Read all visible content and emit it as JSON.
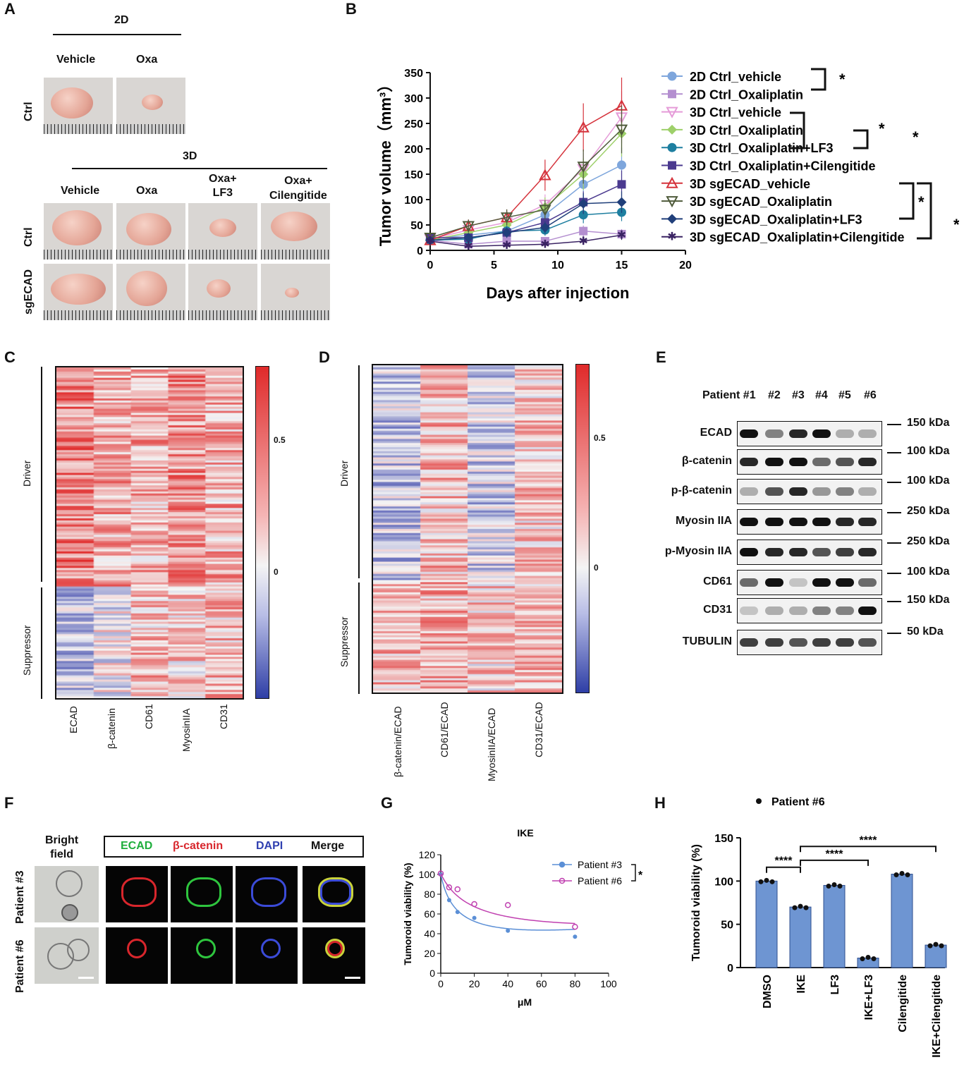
{
  "panels": {
    "A": "A",
    "B": "B",
    "C": "C",
    "D": "D",
    "E": "E",
    "F": "F",
    "G": "G",
    "H": "H"
  },
  "panelA": {
    "group_2d": "2D",
    "group_3d": "3D",
    "cols_2d": [
      "Vehicle",
      "Oxa"
    ],
    "cols_3d": [
      "Vehicle",
      "Oxa",
      "Oxa+\nLF3",
      "Oxa+\nCilengitide"
    ],
    "rows": [
      "Ctrl",
      "Ctrl",
      "sgECAD"
    ]
  },
  "chart_data": [
    {
      "id": "B",
      "type": "line",
      "xlabel": "Days after injection",
      "ylabel": "Tumor volume（mm³）",
      "xlim": [
        0,
        20
      ],
      "ylim": [
        0,
        350
      ],
      "xticks": [
        0,
        5,
        10,
        15,
        20
      ],
      "yticks": [
        0,
        50,
        100,
        150,
        200,
        250,
        300,
        350
      ],
      "x": [
        0,
        3,
        6,
        9,
        12,
        15
      ],
      "series": [
        {
          "name": "2D Ctrl_vehicle",
          "color": "#7ea6dc",
          "marker": "circle",
          "values": [
            22,
            30,
            38,
            70,
            130,
            168
          ]
        },
        {
          "name": "2D Ctrl_Oxaliplatin",
          "color": "#b48fd0",
          "marker": "square",
          "values": [
            20,
            12,
            18,
            18,
            38,
            32
          ]
        },
        {
          "name": "3D Ctrl_vehicle",
          "color": "#e59bd8",
          "marker": "tri-down",
          "values": [
            22,
            40,
            55,
            90,
            160,
            262
          ]
        },
        {
          "name": "3D Ctrl_Oxaliplatin",
          "color": "#9ed06a",
          "marker": "diamond",
          "values": [
            20,
            35,
            50,
            85,
            150,
            230
          ]
        },
        {
          "name": "3D Ctrl_Oxaliplatin+LF3",
          "color": "#1e7fa0",
          "marker": "circle",
          "values": [
            20,
            22,
            38,
            40,
            70,
            75
          ]
        },
        {
          "name": "3D Ctrl_Oxaliplatin+Cilengitide",
          "color": "#4b3a8f",
          "marker": "square",
          "values": [
            25,
            25,
            35,
            55,
            95,
            130
          ]
        },
        {
          "name": "3D sgECAD_vehicle",
          "color": "#d5333c",
          "marker": "tri-up",
          "values": [
            20,
            48,
            65,
            148,
            242,
            285
          ]
        },
        {
          "name": "3D sgECAD_Oxaliplatin",
          "color": "#4f5b3b",
          "marker": "tri-down",
          "values": [
            25,
            48,
            65,
            80,
            165,
            238
          ]
        },
        {
          "name": "3D sgECAD_Oxaliplatin+LF3",
          "color": "#203f7a",
          "marker": "diamond",
          "values": [
            20,
            25,
            35,
            45,
            92,
            95
          ]
        },
        {
          "name": "3D sgECAD_Oxaliplatin+Cilengitide",
          "color": "#3a2363",
          "marker": "star",
          "values": [
            18,
            8,
            10,
            12,
            18,
            30
          ]
        }
      ],
      "significance": [
        "*",
        "*",
        "*",
        "*",
        "***"
      ]
    },
    {
      "id": "G",
      "type": "scatter",
      "title": "IKE",
      "xlabel": "μM",
      "ylabel": "Tumoroid viability (%)",
      "xlim": [
        0,
        100
      ],
      "ylim": [
        0,
        120
      ],
      "xticks": [
        0,
        20,
        40,
        60,
        80,
        100
      ],
      "yticks": [
        0,
        20,
        40,
        60,
        80,
        100,
        120
      ],
      "x": [
        0,
        5,
        10,
        20,
        40,
        80
      ],
      "series": [
        {
          "name": "Patient #3",
          "color": "#5b8fd6",
          "values": [
            100,
            74,
            62,
            56,
            43,
            37
          ]
        },
        {
          "name": "Patient #6",
          "color": "#c040b0",
          "values": [
            101,
            87,
            85,
            70,
            69,
            47
          ]
        }
      ],
      "significance": "*"
    },
    {
      "id": "H",
      "type": "bar",
      "legend": "Patient #6",
      "ylabel": "Tumoroid viability (%)",
      "ylim": [
        0,
        150
      ],
      "yticks": [
        0,
        50,
        100,
        150
      ],
      "categories": [
        "DMSO",
        "IKE",
        "LF3",
        "IKE+LF3",
        "Cilengitide",
        "IKE+Cilengitide"
      ],
      "values": [
        100,
        70,
        95,
        11,
        108,
        26
      ],
      "significance": [
        "****",
        "****",
        "****"
      ]
    }
  ],
  "panelC": {
    "rows": [
      "Driver",
      "Suppressor"
    ],
    "cols": [
      "ECAD",
      "β-catenin",
      "CD61",
      "MyosinIIA",
      "CD31"
    ],
    "cbar": [
      "0.5",
      "0"
    ]
  },
  "panelD": {
    "rows": [
      "Driver",
      "Suppressor"
    ],
    "cols": [
      "β-catenin/ECAD",
      "CD61/ECAD",
      "MyosinIIA/ECAD",
      "CD31/ECAD"
    ],
    "cbar": [
      "0.5",
      "0"
    ]
  },
  "panelE": {
    "patients": [
      "Patient #1",
      "#2",
      "#3",
      "#4",
      "#5",
      "#6"
    ],
    "blots": [
      {
        "name": "ECAD",
        "kda": "150 kDa"
      },
      {
        "name": "β-catenin",
        "kda": "100 kDa"
      },
      {
        "name": "p-β-catenin",
        "kda": "100 kDa"
      },
      {
        "name": "Myosin IIA",
        "kda": "250 kDa"
      },
      {
        "name": "p-Myosin IIA",
        "kda": "250 kDa"
      },
      {
        "name": "CD61",
        "kda": "100 kDa"
      },
      {
        "name": "CD31",
        "kda": "150 kDa"
      },
      {
        "name": "TUBULIN",
        "kda": "50 kDa"
      }
    ]
  },
  "panelF": {
    "bright": "Bright\nfield",
    "channels": [
      "ECAD",
      "β-catenin",
      "DAPI",
      "Merge"
    ],
    "rows": [
      "Patient #3",
      "Patient #6"
    ]
  }
}
